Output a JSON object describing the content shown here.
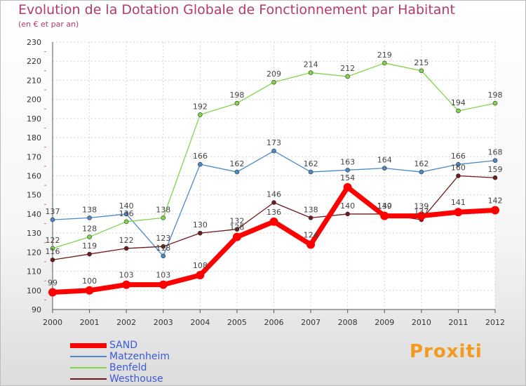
{
  "header": {
    "title": "Evolution de la Dotation Globale de Fonctionnement par Habitant",
    "subtitle": "(en € et par an)"
  },
  "logo": {
    "text": "Proxiti"
  },
  "chart_data": {
    "type": "line",
    "title": "Evolution de la Dotation Globale de Fonctionnement par Habitant",
    "subtitle": "(en € et par an)",
    "xlabel": "",
    "ylabel": "",
    "x": [
      2000,
      2001,
      2002,
      2003,
      2004,
      2005,
      2006,
      2007,
      2008,
      2009,
      2010,
      2011,
      2012
    ],
    "ylim": [
      90,
      230
    ],
    "yticks": [
      90,
      100,
      110,
      120,
      130,
      140,
      150,
      160,
      170,
      180,
      190,
      200,
      210,
      220,
      230
    ],
    "grid": true,
    "legend_position": "bottom-left",
    "series": [
      {
        "name": "SAND",
        "color": "#ff0000",
        "values": [
          99,
          100,
          103,
          103,
          108,
          128,
          136,
          124,
          154,
          139,
          139,
          141,
          142
        ]
      },
      {
        "name": "Matzenheim",
        "color": "#4a8ac8",
        "values": [
          137,
          138,
          140,
          118,
          166,
          162,
          173,
          162,
          163,
          164,
          162,
          166,
          168
        ]
      },
      {
        "name": "Benfeld",
        "color": "#7fd64a",
        "values": [
          122,
          128,
          136,
          138,
          192,
          198,
          209,
          214,
          212,
          219,
          215,
          194,
          198
        ]
      },
      {
        "name": "Westhouse",
        "color": "#6e1a1a",
        "values": [
          116,
          119,
          122,
          123,
          130,
          132,
          146,
          138,
          140,
          140,
          137,
          160,
          159
        ]
      }
    ]
  }
}
